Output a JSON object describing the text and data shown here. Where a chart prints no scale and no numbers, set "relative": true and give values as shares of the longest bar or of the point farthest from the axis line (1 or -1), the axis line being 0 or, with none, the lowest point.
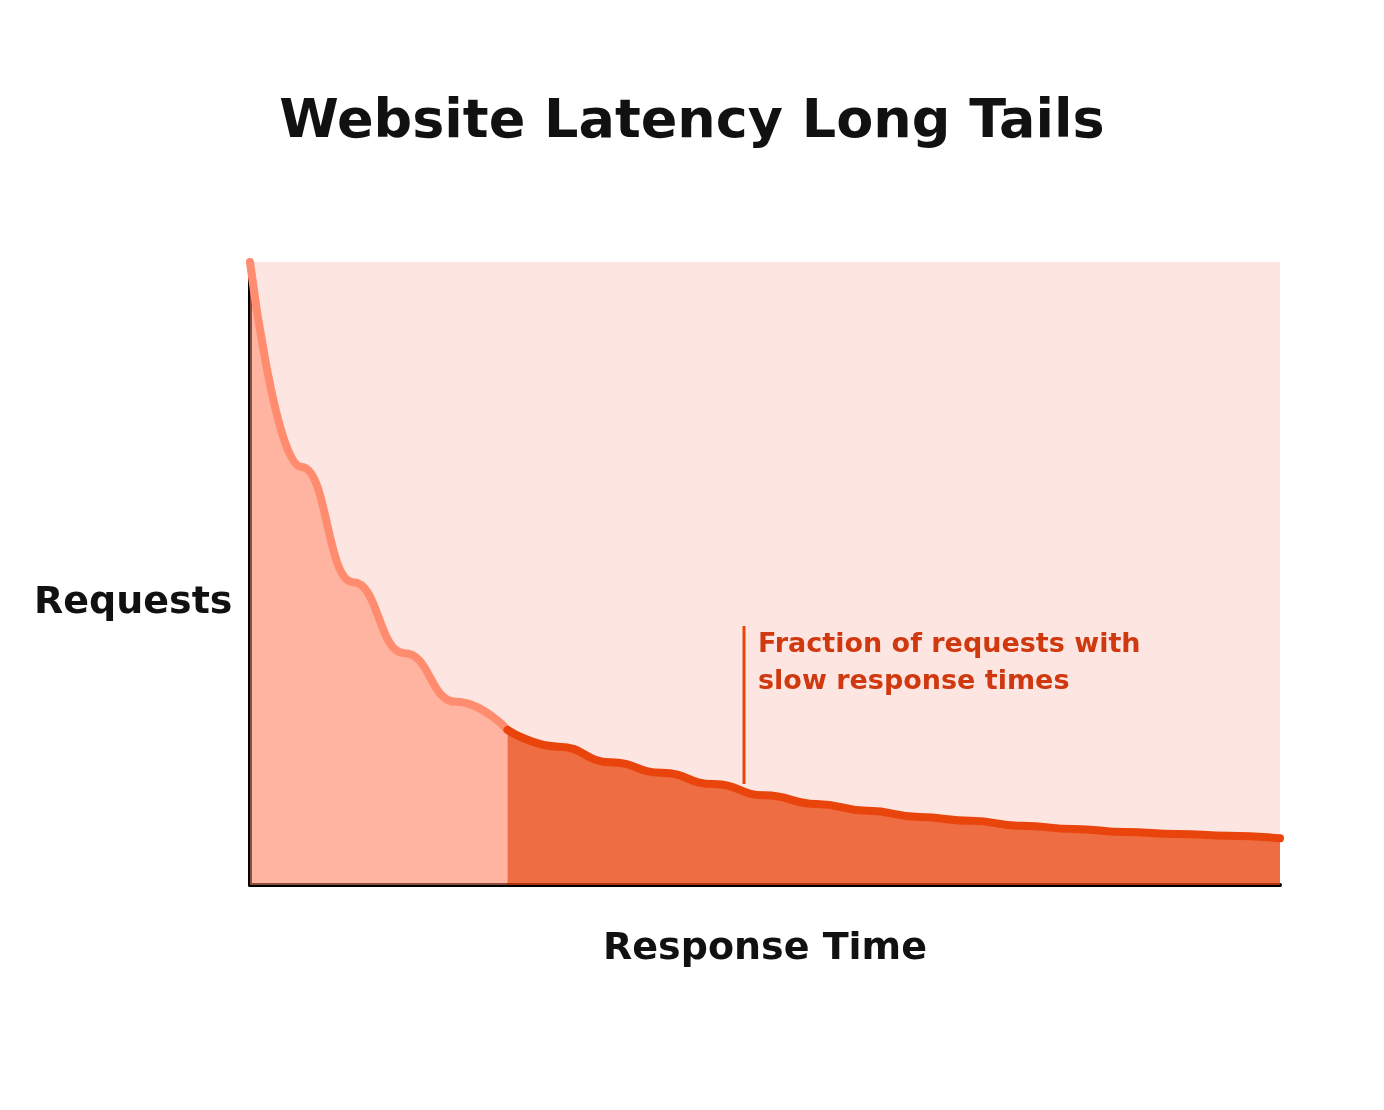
{
  "chart_data": {
    "type": "area",
    "title": "Website Latency Long Tails",
    "xlabel": "Response Time",
    "ylabel": "Requests",
    "relative": true,
    "grid": false,
    "marker": "none",
    "categories": [
      null,
      null,
      null,
      null,
      null,
      null,
      null,
      null,
      null,
      null,
      null,
      null,
      null,
      null,
      null,
      null,
      null,
      null,
      null,
      null,
      null
    ],
    "series": [
      {
        "color": "#ff8c6e",
        "values": [
          1,
          0.671,
          0.486,
          0.372,
          0.294,
          0.249,
          null,
          null,
          null,
          null,
          null,
          null,
          null,
          null,
          null,
          null,
          null,
          null,
          null,
          null,
          null
        ]
      },
      {
        "color": "#e8440c",
        "values": [
          null,
          null,
          null,
          null,
          null,
          0.249,
          0.222,
          0.197,
          0.18,
          0.162,
          0.144,
          0.13,
          0.119,
          0.109,
          0.103,
          0.095,
          0.09,
          0.085,
          0.082,
          0.079,
          0.075
        ]
      }
    ],
    "annotations": [
      "Fraction of requests with\nslow response times"
    ]
  }
}
